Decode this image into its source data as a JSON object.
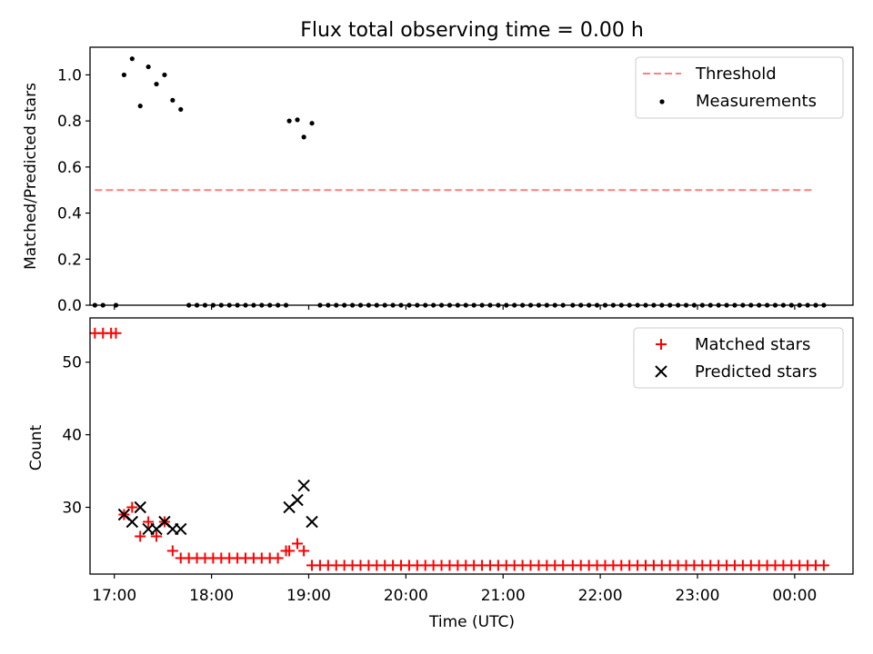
{
  "figure": {
    "title": "Flux total observing time = 0.00 h"
  },
  "colors": {
    "threshold": "#ff7f7f",
    "measurement": "#000000",
    "matched": "#ff0000",
    "predicted": "#000000",
    "axes": "#000000",
    "legend_border": "#cccccc"
  },
  "chart_data": [
    {
      "type": "scatter",
      "panel": "top",
      "ylabel": "Matched/Predicted stars",
      "ylim": [
        0,
        1.12
      ],
      "yticks": [
        0.0,
        0.2,
        0.4,
        0.6,
        0.8,
        1.0
      ],
      "ytick_labels": [
        "0.0",
        "0.2",
        "0.4",
        "0.6",
        "0.8",
        "1.0"
      ],
      "xlim": [
        "16:45",
        "00:36"
      ],
      "xticks": [
        "17:00",
        "18:00",
        "19:00",
        "20:00",
        "21:00",
        "22:00",
        "23:00",
        "00:00"
      ],
      "grid": false,
      "legend": {
        "placement": "top-right",
        "entries": [
          "Threshold",
          "Measurements"
        ]
      },
      "series": [
        {
          "name": "Threshold",
          "style": "dashed-line",
          "x": [
            "16:48",
            "00:12"
          ],
          "y": [
            0.5,
            0.5
          ]
        },
        {
          "name": "Measurements",
          "style": "dot",
          "points": [
            [
              "16:48",
              0.0
            ],
            [
              "16:53",
              0.0
            ],
            [
              "17:01",
              0.0
            ],
            [
              "17:06",
              1.0
            ],
            [
              "17:11",
              1.07
            ],
            [
              "17:16",
              0.865
            ],
            [
              "17:21",
              1.035
            ],
            [
              "17:26",
              0.96
            ],
            [
              "17:31",
              1.0
            ],
            [
              "17:36",
              0.89
            ],
            [
              "17:41",
              0.85
            ],
            [
              "17:46",
              0.0
            ],
            [
              "17:51",
              0.0
            ],
            [
              "17:56",
              0.0
            ],
            [
              "18:01",
              0.0
            ],
            [
              "18:06",
              0.0
            ],
            [
              "18:11",
              0.0
            ],
            [
              "18:16",
              0.0
            ],
            [
              "18:21",
              0.0
            ],
            [
              "18:26",
              0.0
            ],
            [
              "18:31",
              0.0
            ],
            [
              "18:36",
              0.0
            ],
            [
              "18:41",
              0.0
            ],
            [
              "18:46",
              0.0
            ],
            [
              "18:48",
              0.8
            ],
            [
              "18:53",
              0.805
            ],
            [
              "18:57",
              0.73
            ],
            [
              "19:02",
              0.79
            ],
            [
              "19:07",
              0.0
            ],
            [
              "19:12",
              0.0
            ],
            [
              "19:17",
              0.0
            ],
            [
              "19:22",
              0.0
            ],
            [
              "19:27",
              0.0
            ],
            [
              "19:32",
              0.0
            ],
            [
              "19:37",
              0.0
            ],
            [
              "19:42",
              0.0
            ],
            [
              "19:47",
              0.0
            ],
            [
              "19:52",
              0.0
            ],
            [
              "19:57",
              0.0
            ],
            [
              "20:02",
              0.0
            ],
            [
              "20:07",
              0.0
            ],
            [
              "20:12",
              0.0
            ],
            [
              "20:17",
              0.0
            ],
            [
              "20:22",
              0.0
            ],
            [
              "20:27",
              0.0
            ],
            [
              "20:32",
              0.0
            ],
            [
              "20:37",
              0.0
            ],
            [
              "20:42",
              0.0
            ],
            [
              "20:47",
              0.0
            ],
            [
              "20:52",
              0.0
            ],
            [
              "20:57",
              0.0
            ],
            [
              "21:02",
              0.0
            ],
            [
              "21:07",
              0.0
            ],
            [
              "21:12",
              0.0
            ],
            [
              "21:17",
              0.0
            ],
            [
              "21:22",
              0.0
            ],
            [
              "21:27",
              0.0
            ],
            [
              "21:32",
              0.0
            ],
            [
              "21:37",
              0.0
            ],
            [
              "21:43",
              0.0
            ],
            [
              "21:48",
              0.0
            ],
            [
              "21:53",
              0.0
            ],
            [
              "21:58",
              0.0
            ],
            [
              "22:03",
              0.0
            ],
            [
              "22:08",
              0.0
            ],
            [
              "22:13",
              0.0
            ],
            [
              "22:18",
              0.0
            ],
            [
              "22:23",
              0.0
            ],
            [
              "22:28",
              0.0
            ],
            [
              "22:33",
              0.0
            ],
            [
              "22:38",
              0.0
            ],
            [
              "22:43",
              0.0
            ],
            [
              "22:48",
              0.0
            ],
            [
              "22:53",
              0.0
            ],
            [
              "22:58",
              0.0
            ],
            [
              "23:03",
              0.0
            ],
            [
              "23:08",
              0.0
            ],
            [
              "23:13",
              0.0
            ],
            [
              "23:18",
              0.0
            ],
            [
              "23:23",
              0.0
            ],
            [
              "23:28",
              0.0
            ],
            [
              "23:33",
              0.0
            ],
            [
              "23:38",
              0.0
            ],
            [
              "23:43",
              0.0
            ],
            [
              "23:48",
              0.0
            ],
            [
              "23:53",
              0.0
            ],
            [
              "23:58",
              0.0
            ],
            [
              "00:03",
              0.0
            ],
            [
              "00:08",
              0.0
            ],
            [
              "00:13",
              0.0
            ],
            [
              "00:18",
              0.0
            ]
          ]
        }
      ]
    },
    {
      "type": "scatter",
      "panel": "bottom",
      "xlabel": "Time (UTC)",
      "ylabel": "Count",
      "ylim": [
        20.8,
        56.1
      ],
      "yticks": [
        30,
        40,
        50
      ],
      "ytick_labels": [
        "30",
        "40",
        "50"
      ],
      "xlim": [
        "16:45",
        "00:36"
      ],
      "xticks": [
        "17:00",
        "18:00",
        "19:00",
        "20:00",
        "21:00",
        "22:00",
        "23:00",
        "00:00"
      ],
      "xtick_labels": [
        "17:00",
        "18:00",
        "19:00",
        "20:00",
        "21:00",
        "22:00",
        "23:00",
        "00:00"
      ],
      "grid": false,
      "legend": {
        "placement": "top-right",
        "entries": [
          "Matched stars",
          "Predicted stars"
        ]
      },
      "series": [
        {
          "name": "Matched stars",
          "marker": "plus",
          "points": [
            [
              "16:48",
              54
            ],
            [
              "16:53",
              54
            ],
            [
              "16:58",
              54
            ],
            [
              "17:01",
              54
            ],
            [
              "17:06",
              29
            ],
            [
              "17:11",
              30
            ],
            [
              "17:16",
              26
            ],
            [
              "17:21",
              28
            ],
            [
              "17:26",
              26
            ],
            [
              "17:31",
              28
            ],
            [
              "17:36",
              24
            ],
            [
              "17:41",
              23
            ],
            [
              "17:46",
              23
            ],
            [
              "17:51",
              23
            ],
            [
              "17:56",
              23
            ],
            [
              "18:01",
              23
            ],
            [
              "18:06",
              23
            ],
            [
              "18:11",
              23
            ],
            [
              "18:16",
              23
            ],
            [
              "18:21",
              23
            ],
            [
              "18:26",
              23
            ],
            [
              "18:31",
              23
            ],
            [
              "18:36",
              23
            ],
            [
              "18:41",
              23
            ],
            [
              "18:46",
              24
            ],
            [
              "18:48",
              24
            ],
            [
              "18:53",
              25
            ],
            [
              "18:57",
              24
            ],
            [
              "19:02",
              22
            ],
            [
              "19:07",
              22
            ],
            [
              "19:12",
              22
            ],
            [
              "19:17",
              22
            ],
            [
              "19:22",
              22
            ],
            [
              "19:27",
              22
            ],
            [
              "19:32",
              22
            ],
            [
              "19:37",
              22
            ],
            [
              "19:42",
              22
            ],
            [
              "19:47",
              22
            ],
            [
              "19:52",
              22
            ],
            [
              "19:57",
              22
            ],
            [
              "20:02",
              22
            ],
            [
              "20:07",
              22
            ],
            [
              "20:12",
              22
            ],
            [
              "20:17",
              22
            ],
            [
              "20:22",
              22
            ],
            [
              "20:27",
              22
            ],
            [
              "20:32",
              22
            ],
            [
              "20:37",
              22
            ],
            [
              "20:42",
              22
            ],
            [
              "20:47",
              22
            ],
            [
              "20:52",
              22
            ],
            [
              "20:57",
              22
            ],
            [
              "21:02",
              22
            ],
            [
              "21:07",
              22
            ],
            [
              "21:12",
              22
            ],
            [
              "21:17",
              22
            ],
            [
              "21:22",
              22
            ],
            [
              "21:27",
              22
            ],
            [
              "21:32",
              22
            ],
            [
              "21:37",
              22
            ],
            [
              "21:43",
              22
            ],
            [
              "21:48",
              22
            ],
            [
              "21:53",
              22
            ],
            [
              "21:58",
              22
            ],
            [
              "22:03",
              22
            ],
            [
              "22:08",
              22
            ],
            [
              "22:13",
              22
            ],
            [
              "22:18",
              22
            ],
            [
              "22:23",
              22
            ],
            [
              "22:28",
              22
            ],
            [
              "22:33",
              22
            ],
            [
              "22:38",
              22
            ],
            [
              "22:43",
              22
            ],
            [
              "22:48",
              22
            ],
            [
              "22:53",
              22
            ],
            [
              "22:58",
              22
            ],
            [
              "23:03",
              22
            ],
            [
              "23:08",
              22
            ],
            [
              "23:13",
              22
            ],
            [
              "23:18",
              22
            ],
            [
              "23:23",
              22
            ],
            [
              "23:28",
              22
            ],
            [
              "23:33",
              22
            ],
            [
              "23:38",
              22
            ],
            [
              "23:43",
              22
            ],
            [
              "23:48",
              22
            ],
            [
              "23:53",
              22
            ],
            [
              "23:58",
              22
            ],
            [
              "00:03",
              22
            ],
            [
              "00:08",
              22
            ],
            [
              "00:13",
              22
            ],
            [
              "00:18",
              22
            ]
          ]
        },
        {
          "name": "Predicted stars",
          "marker": "x",
          "points": [
            [
              "17:06",
              29
            ],
            [
              "17:11",
              28
            ],
            [
              "17:16",
              30
            ],
            [
              "17:21",
              27
            ],
            [
              "17:26",
              27
            ],
            [
              "17:31",
              28
            ],
            [
              "17:36",
              27
            ],
            [
              "17:41",
              27
            ],
            [
              "18:48",
              30
            ],
            [
              "18:53",
              31
            ],
            [
              "18:57",
              33
            ],
            [
              "19:02",
              28
            ]
          ]
        }
      ]
    }
  ]
}
